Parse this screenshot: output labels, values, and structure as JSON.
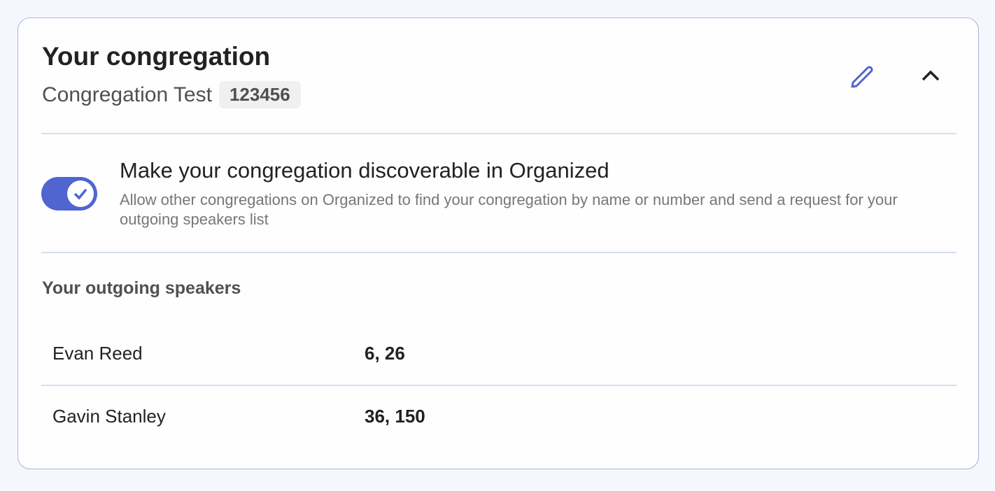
{
  "header": {
    "title": "Your congregation",
    "congregation_name": "Congregation Test",
    "congregation_number": "123456"
  },
  "icons": {
    "edit": "pencil-icon",
    "collapse": "chevron-up-icon",
    "toggle": "check-icon"
  },
  "discoverable": {
    "label": "Make your congregation discoverable in Organized",
    "description": "Allow other congregations on Organized to find your congregation by name or number and send a request for your outgoing speakers list",
    "enabled": true
  },
  "speakers": {
    "title": "Your outgoing speakers",
    "items": [
      {
        "name": "Evan Reed",
        "talks": "6, 26"
      },
      {
        "name": "Gavin Stanley",
        "talks": "36, 150"
      }
    ]
  },
  "colors": {
    "accent": "#5065d0",
    "border": "#a9b4de",
    "divider": "#d6ddf5"
  }
}
